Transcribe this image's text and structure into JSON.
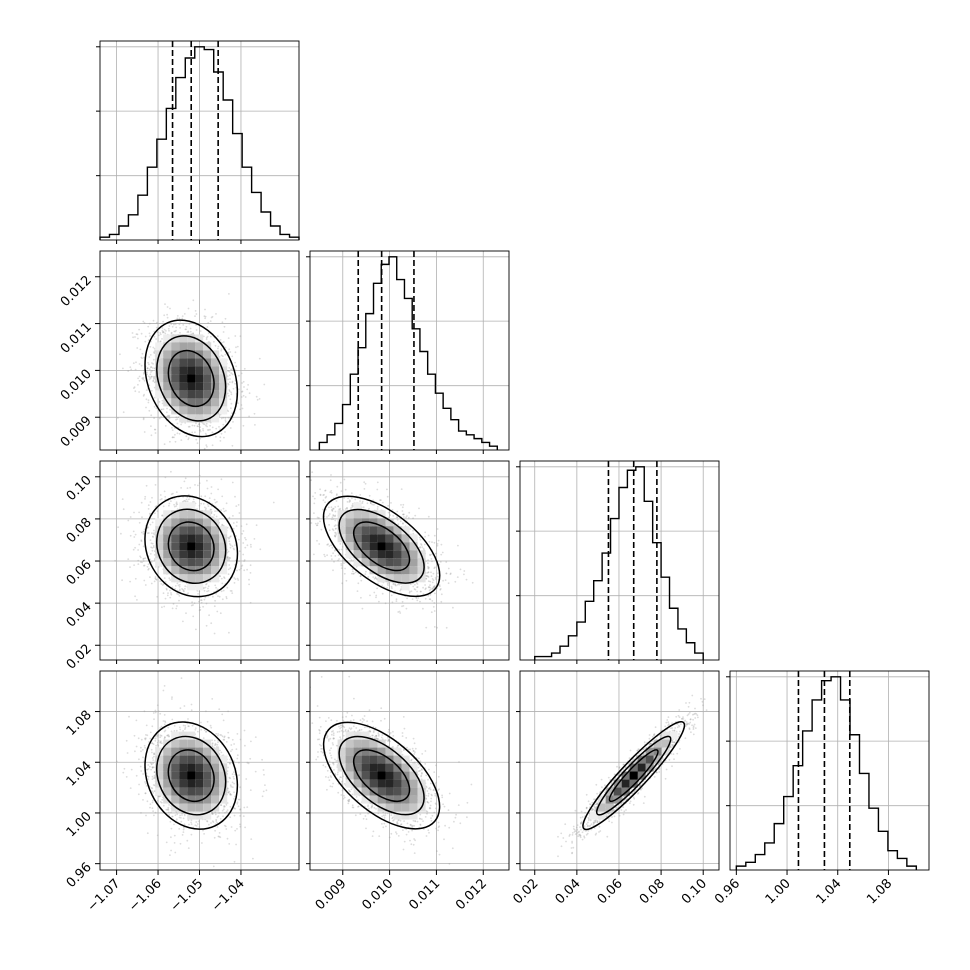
{
  "chart_data": {
    "type": "corner",
    "parameters": [
      {
        "range": [
          -1.074,
          -1.026
        ],
        "ticks": [
          -1.07,
          -1.06,
          -1.05,
          -1.04
        ],
        "tick_labels": [
          "−1.07",
          "−1.06",
          "−1.05",
          "−1.04"
        ],
        "quantiles": [
          -1.0565,
          -1.052,
          -1.0455
        ]
      },
      {
        "range": [
          0.0083,
          0.01255
        ],
        "ticks": [
          0.009,
          0.01,
          0.011,
          0.012
        ],
        "tick_labels": [
          "0.009",
          "0.010",
          "0.011",
          "0.012"
        ],
        "quantiles": [
          0.00933,
          0.00983,
          0.01052
        ]
      },
      {
        "range": [
          0.013,
          0.1075
        ],
        "ticks": [
          0.02,
          0.04,
          0.06,
          0.08,
          0.1
        ],
        "tick_labels": [
          "0.02",
          "0.04",
          "0.06",
          "0.08",
          "0.10"
        ],
        "quantiles": [
          0.055,
          0.067,
          0.078
        ]
      },
      {
        "range": [
          0.955,
          1.112
        ],
        "ticks": [
          0.96,
          1.0,
          1.04,
          1.08
        ],
        "tick_labels": [
          "0.96",
          "1.00",
          "1.04",
          "1.08"
        ],
        "quantiles": [
          1.009,
          1.0295,
          1.0495
        ]
      }
    ],
    "marginals": [
      {
        "bin_edges_range": [
          -1.074,
          -1.026
        ],
        "counts": [
          1,
          2,
          5,
          9,
          16,
          26,
          36,
          47,
          58,
          65,
          69,
          68,
          60,
          50,
          38,
          26,
          17,
          10,
          5,
          2,
          1
        ]
      },
      {
        "bin_edges_range": [
          0.0085,
          0.0123
        ],
        "counts": [
          2,
          4,
          7,
          12,
          20,
          27,
          36,
          44,
          49,
          51,
          45,
          40,
          32,
          26,
          20,
          15,
          11,
          8,
          5,
          4,
          3,
          2,
          1
        ]
      },
      {
        "bin_edges_range": [
          0.02,
          0.1
        ],
        "counts": [
          1,
          1,
          2,
          4,
          7,
          11,
          17,
          23,
          31,
          41,
          50,
          55,
          56,
          46,
          34,
          24,
          15,
          9,
          5,
          2
        ]
      },
      {
        "bin_edges_range": [
          0.96,
          1.102
        ],
        "counts": [
          1,
          2,
          4,
          7,
          12,
          19,
          27,
          36,
          44,
          49,
          50,
          44,
          35,
          25,
          16,
          10,
          5,
          3,
          1
        ]
      }
    ],
    "correlations": [
      [
        0,
        1,
        -0.2
      ],
      [
        0,
        2,
        -0.1
      ],
      [
        0,
        3,
        -0.15
      ],
      [
        1,
        2,
        -0.55
      ],
      [
        1,
        3,
        -0.55
      ],
      [
        2,
        3,
        0.93
      ]
    ],
    "grid": true,
    "contours": "1, 1.5 and 2 sigma levels",
    "sample_points": "light grey scatter of samples",
    "quantile_lines": "dashed"
  },
  "colors": {
    "line": "#000000",
    "grid": "#b0b0b0",
    "points": "#9a9a9a",
    "density_dark": "#000000"
  }
}
